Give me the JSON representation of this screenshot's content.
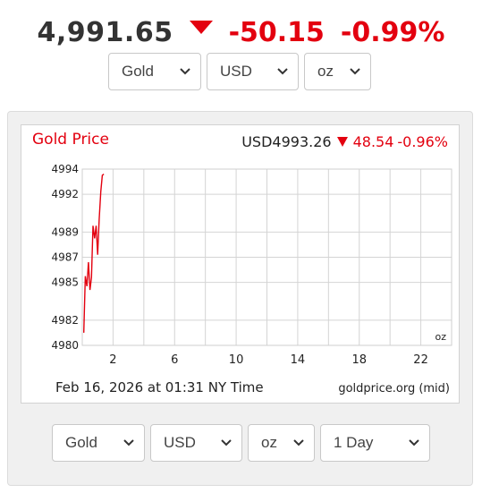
{
  "quote": {
    "price": "4,991.65",
    "change": "-50.15",
    "change_pct": "-0.99%",
    "direction_color": "#e3000f"
  },
  "top_selectors": {
    "metal": "Gold",
    "currency": "USD",
    "unit": "oz"
  },
  "chart": {
    "title": "Gold Price",
    "quote_price": "USD4993.26",
    "quote_change": "48.54",
    "quote_pct": "-0.96%",
    "unit_label": "oz",
    "timestamp": "Feb 16, 2026 at 01:31 NY Time",
    "source": "goldprice.org (mid)"
  },
  "chart_data": {
    "type": "line",
    "xlabel": "",
    "ylabel": "",
    "x_ticks": [
      "2",
      "6",
      "10",
      "14",
      "18",
      "22"
    ],
    "x_tick_values": [
      2,
      6,
      10,
      14,
      18,
      22
    ],
    "xlim": [
      0,
      24
    ],
    "y_ticks": [
      "4994",
      "4992",
      "4989",
      "4987",
      "4985",
      "4982",
      "4980"
    ],
    "ylim": [
      4980,
      4994
    ],
    "grid": true,
    "series": [
      {
        "color": "#e3000f",
        "x": [
          0.1,
          0.2,
          0.3,
          0.4,
          0.5,
          0.6,
          0.7,
          0.8,
          0.9,
          1.0,
          1.1,
          1.2,
          1.3,
          1.4
        ],
        "y": [
          4981.0,
          4985.5,
          4984.7,
          4986.6,
          4984.4,
          4985.4,
          4989.5,
          4988.5,
          4989.5,
          4987.2,
          4990.0,
          4992.2,
          4993.5,
          4993.6
        ]
      }
    ]
  },
  "bottom_selectors": {
    "metal": "Gold",
    "currency": "USD",
    "unit": "oz",
    "range": "1 Day"
  }
}
